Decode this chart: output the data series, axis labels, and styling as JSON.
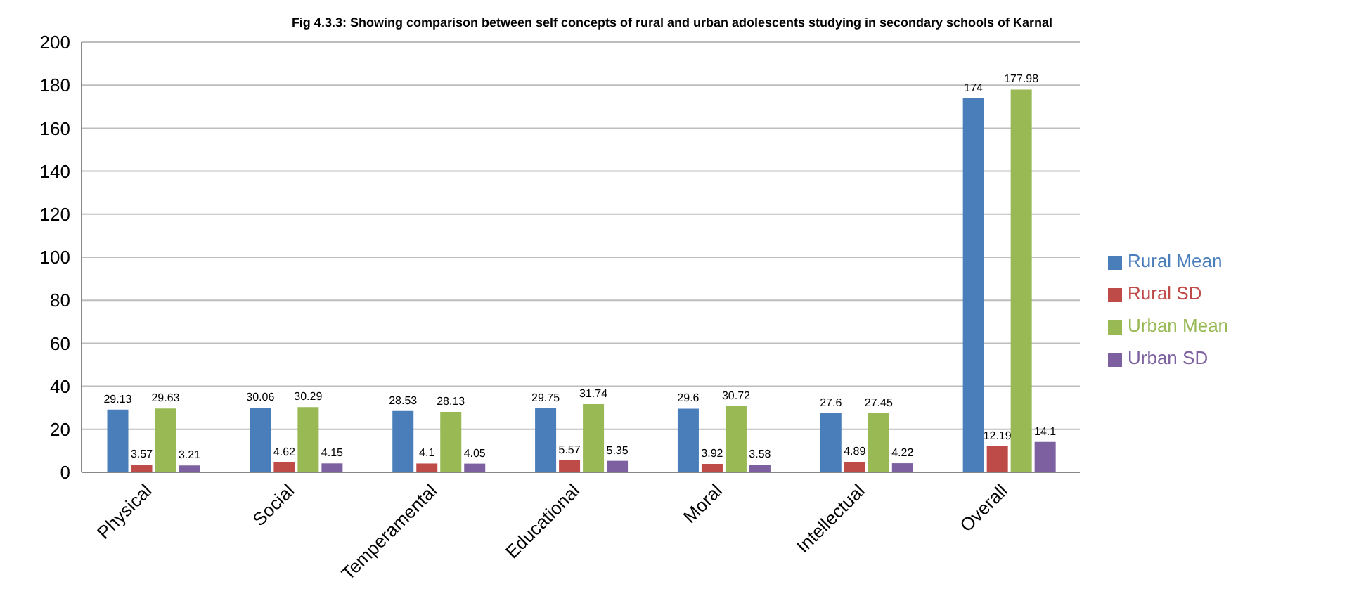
{
  "chart_data": {
    "type": "bar",
    "title": "Fig 4.3.3: Showing comparison between self concepts of rural and urban adolescents studying in secondary schools of Karnal",
    "categories": [
      "Physical",
      "Social",
      "Temperamental",
      "Educational",
      "Moral",
      "Intellectual",
      "Overall"
    ],
    "series": [
      {
        "name": "Rural  Mean",
        "color": "#4a7ebb",
        "values": [
          29.13,
          30.06,
          28.53,
          29.75,
          29.6,
          27.6,
          174
        ]
      },
      {
        "name": "Rural  SD",
        "color": "#be4b48",
        "values": [
          3.57,
          4.62,
          4.1,
          5.57,
          3.92,
          4.89,
          12.19
        ]
      },
      {
        "name": "Urban  Mean",
        "color": "#98b954",
        "values": [
          29.63,
          30.29,
          28.13,
          31.74,
          30.72,
          27.45,
          177.98
        ]
      },
      {
        "name": "Urban  SD",
        "color": "#7d60a0",
        "values": [
          3.21,
          4.15,
          4.05,
          5.35,
          3.58,
          4.22,
          14.1
        ]
      }
    ],
    "ylim": [
      0,
      200
    ],
    "yticks": [
      0,
      20,
      40,
      60,
      80,
      100,
      120,
      140,
      160,
      180,
      200
    ],
    "grid": "y",
    "legend": "right",
    "data_labels": true
  }
}
